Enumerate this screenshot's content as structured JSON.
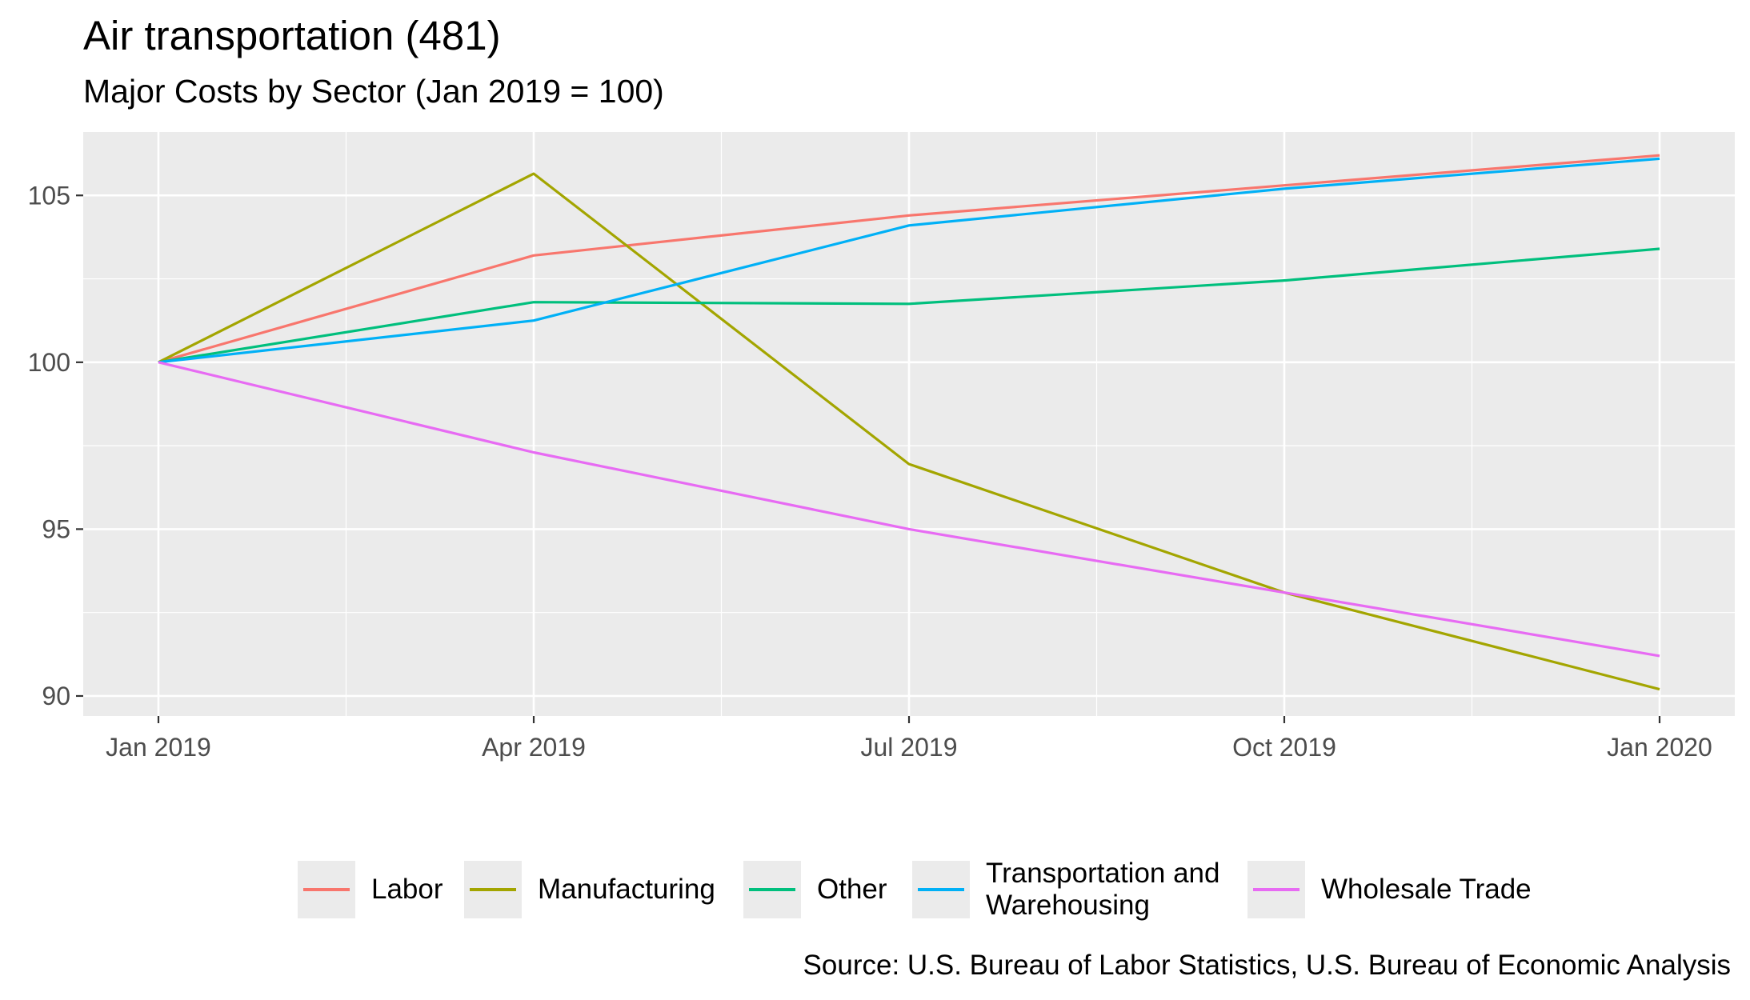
{
  "title": "Air transportation (481)",
  "subtitle": "Major Costs by Sector (Jan 2019 = 100)",
  "caption": "Source: U.S. Bureau of Labor Statistics, U.S. Bureau of Economic Analysis",
  "chart_data": {
    "type": "line",
    "x": [
      "Jan 2019",
      "Apr 2019",
      "Jul 2019",
      "Oct 2019",
      "Jan 2020"
    ],
    "x_tick_labels": [
      "Jan 2019",
      "Apr 2019",
      "Jul 2019",
      "Oct 2019",
      "Jan 2020"
    ],
    "y_ticks": [
      90,
      95,
      100,
      105
    ],
    "ylim": [
      89.4,
      106.9
    ],
    "grid": true,
    "legend_position": "bottom",
    "series": [
      {
        "name": "Labor",
        "color": "#F8766D",
        "values": [
          100,
          103.2,
          104.4,
          105.3,
          106.2
        ]
      },
      {
        "name": "Manufacturing",
        "color": "#A3A500",
        "values": [
          100,
          105.65,
          96.95,
          93.1,
          90.2
        ]
      },
      {
        "name": "Other",
        "color": "#00BF7D",
        "values": [
          100,
          101.8,
          101.75,
          102.45,
          103.4
        ]
      },
      {
        "name": "Transportation and\nWarehousing",
        "color": "#00B0F6",
        "values": [
          100,
          101.25,
          104.1,
          105.2,
          106.1
        ]
      },
      {
        "name": "Wholesale Trade",
        "color": "#E76BF3",
        "values": [
          100,
          97.3,
          95.0,
          93.1,
          91.2
        ]
      }
    ]
  }
}
